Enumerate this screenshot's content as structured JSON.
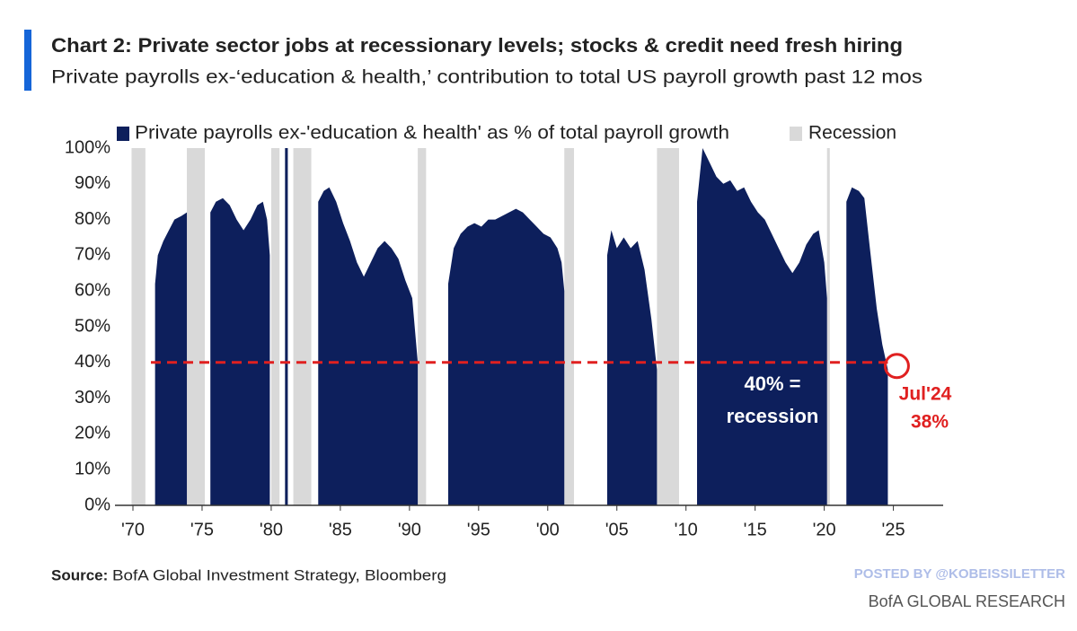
{
  "chart_data": {
    "type": "area",
    "title": "Chart 2: Private sector jobs at recessionary levels; stocks & credit need fresh hiring",
    "subtitle": "Private payrolls ex-‘education & health,’ contribution to total US payroll growth past 12 mos",
    "x": [
      1971.6,
      1971.8,
      1972.2,
      1972.6,
      1973.0,
      1973.5,
      1973.9,
      1974.5,
      1975.6,
      1976.0,
      1976.5,
      1977.0,
      1977.5,
      1978.0,
      1978.5,
      1979.0,
      1979.4,
      1979.7,
      1979.9,
      1980.5,
      1981.0,
      1981.2,
      1982.0,
      1983.4,
      1983.8,
      1984.2,
      1984.7,
      1985.2,
      1985.7,
      1986.2,
      1986.7,
      1987.2,
      1987.7,
      1988.2,
      1988.7,
      1989.2,
      1989.7,
      1990.2,
      1990.6,
      1991.5,
      1992.8,
      1993.2,
      1993.7,
      1994.2,
      1994.7,
      1995.2,
      1995.7,
      1996.2,
      1996.7,
      1997.2,
      1997.7,
      1998.2,
      1998.7,
      1999.2,
      1999.7,
      2000.2,
      2000.7,
      2001.0,
      2001.2,
      2002.5,
      2004.3,
      2004.6,
      2005.0,
      2005.5,
      2006.0,
      2006.5,
      2007.0,
      2007.5,
      2007.9,
      2009.0,
      2010.8,
      2011.2,
      2011.7,
      2012.2,
      2012.7,
      2013.2,
      2013.7,
      2014.2,
      2014.7,
      2015.2,
      2015.7,
      2016.2,
      2016.7,
      2017.2,
      2017.7,
      2018.2,
      2018.7,
      2019.2,
      2019.6,
      2020.0,
      2020.2,
      2021.0,
      2021.6,
      2022.0,
      2022.5,
      2022.9,
      2023.3,
      2023.8,
      2024.2,
      2024.6
    ],
    "series": [
      {
        "name": "Private payrolls ex-'education & health' as % of total payroll growth",
        "color": "#0d1f5c",
        "values": [
          62,
          70,
          74,
          77,
          80,
          81,
          82,
          null,
          82,
          85,
          86,
          84,
          80,
          77,
          80,
          84,
          85,
          80,
          70,
          null,
          100,
          100,
          null,
          85,
          88,
          89,
          85,
          79,
          74,
          68,
          64,
          68,
          72,
          74,
          72,
          69,
          63,
          58,
          40,
          null,
          62,
          72,
          76,
          78,
          79,
          78,
          80,
          80,
          81,
          82,
          83,
          82,
          80,
          78,
          76,
          75,
          72,
          68,
          60,
          null,
          70,
          77,
          72,
          75,
          72,
          74,
          66,
          52,
          38,
          null,
          85,
          100,
          96,
          92,
          90,
          91,
          88,
          89,
          85,
          82,
          80,
          76,
          72,
          68,
          65,
          68,
          73,
          76,
          77,
          68,
          58,
          null,
          85,
          89,
          88,
          86,
          72,
          55,
          45,
          38
        ]
      }
    ],
    "recession": {
      "name": "Recession",
      "color": "#d9d9d9",
      "periods": [
        [
          1969.9,
          1970.9
        ],
        [
          1973.9,
          1975.2
        ],
        [
          1980.0,
          1980.6
        ],
        [
          1981.6,
          1982.9
        ],
        [
          1990.6,
          1991.2
        ],
        [
          2001.2,
          2001.9
        ],
        [
          2007.9,
          2009.5
        ],
        [
          2020.2,
          2020.4
        ]
      ]
    },
    "threshold": {
      "value": 40,
      "label": "40% =",
      "label2": "recession",
      "color": "#e02020"
    },
    "callout": {
      "x": 2024.6,
      "value": 38,
      "label": "Jul'24",
      "value_label": "38%",
      "color": "#e02020"
    },
    "xlim": [
      1968.7,
      2028.6
    ],
    "xticks": [
      {
        "value": 1970,
        "label": "'70"
      },
      {
        "value": 1975,
        "label": "'75"
      },
      {
        "value": 1980,
        "label": "'80"
      },
      {
        "value": 1985,
        "label": "'85"
      },
      {
        "value": 1990,
        "label": "'90"
      },
      {
        "value": 1995,
        "label": "'95"
      },
      {
        "value": 2000,
        "label": "'00"
      },
      {
        "value": 2005,
        "label": "'05"
      },
      {
        "value": 2010,
        "label": "'10"
      },
      {
        "value": 2015,
        "label": "'15"
      },
      {
        "value": 2020,
        "label": "'20"
      },
      {
        "value": 2025,
        "label": "'25"
      }
    ],
    "ylim": [
      0,
      100
    ],
    "yticks": [
      {
        "value": 0,
        "label": "0%"
      },
      {
        "value": 10,
        "label": "10%"
      },
      {
        "value": 20,
        "label": "20%"
      },
      {
        "value": 30,
        "label": "30%"
      },
      {
        "value": 40,
        "label": "40%"
      },
      {
        "value": 50,
        "label": "50%"
      },
      {
        "value": 60,
        "label": "60%"
      },
      {
        "value": 70,
        "label": "70%"
      },
      {
        "value": 80,
        "label": "80%"
      },
      {
        "value": 90,
        "label": "90%"
      },
      {
        "value": 100,
        "label": "100%"
      }
    ],
    "source_label": "Source:",
    "source": "BofA Global Investment Strategy, Bloomberg",
    "posted_by": "POSTED BY @KOBEISSILETTER",
    "publisher": "BofA GLOBAL RESEARCH"
  }
}
